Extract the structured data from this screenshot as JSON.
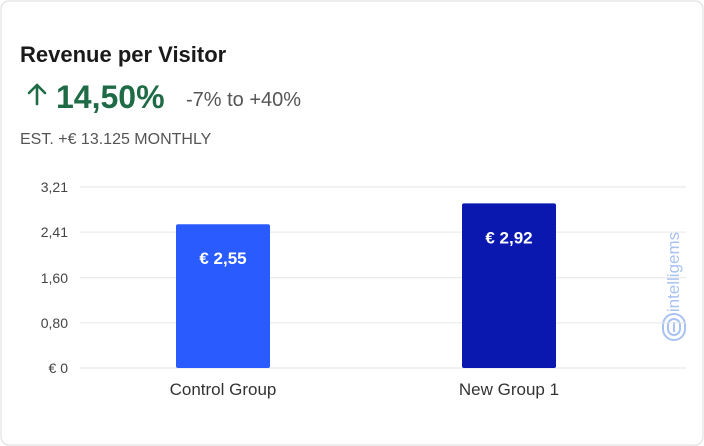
{
  "title": "Revenue per Visitor",
  "uplift": "14,50%",
  "range": "-7% to +40%",
  "estimate": "EST. +€ 13.125 MONTHLY",
  "watermark": "intelligems",
  "chart_data": {
    "type": "bar",
    "categories": [
      "Control Group",
      "New Group 1"
    ],
    "values": [
      2.55,
      2.92
    ],
    "value_labels": [
      "€ 2,55",
      "€ 2,92"
    ],
    "colors": [
      "#2a5bff",
      "#0a18b0"
    ],
    "ylim": [
      0,
      3.21
    ],
    "yticks": [
      {
        "value": 0,
        "label": "€ 0"
      },
      {
        "value": 0.8,
        "label": "0,80"
      },
      {
        "value": 1.6,
        "label": "1,60"
      },
      {
        "value": 2.41,
        "label": "2,41"
      },
      {
        "value": 3.21,
        "label": "3,21"
      }
    ],
    "grid": true
  }
}
